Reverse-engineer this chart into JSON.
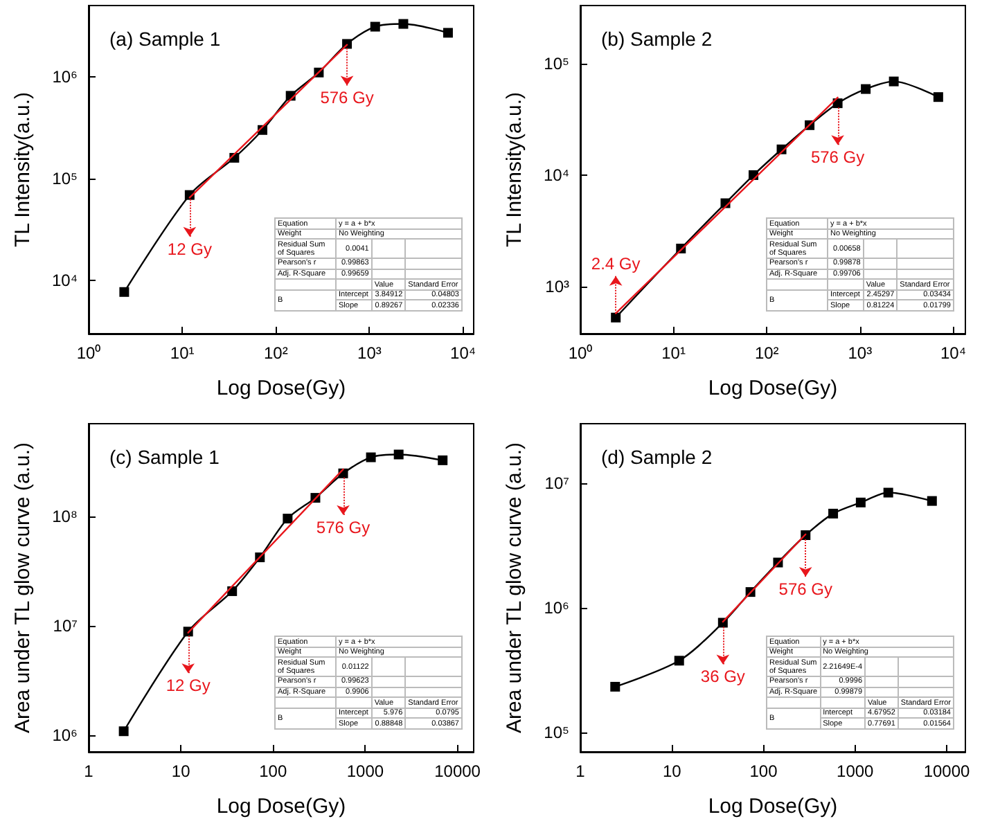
{
  "chart_data": [
    {
      "type": "line",
      "title": "(a) Sample 1",
      "xlabel": "Log Dose(Gy)",
      "ylabel": "TL Intensity(a.u.)",
      "log": "xy",
      "grid": false,
      "marker": "square",
      "xlim": [
        1,
        13000
      ],
      "xticks": [
        {
          "value": 1,
          "label": "10⁰"
        },
        {
          "value": 10,
          "label": "10¹"
        },
        {
          "value": 100,
          "label": "10²"
        },
        {
          "value": 1000,
          "label": "10³"
        },
        {
          "value": 10000,
          "label": "10⁴"
        }
      ],
      "ylim": [
        3000,
        5000000
      ],
      "yticks": [
        {
          "value": 10000,
          "label": "10⁴"
        },
        {
          "value": 100000,
          "label": "10⁵"
        },
        {
          "value": 1000000,
          "label": "10⁶"
        }
      ],
      "series": [
        {
          "color": "#000000",
          "x": [
            2.4,
            12,
            36,
            72,
            144,
            288,
            576,
            1152,
            2304,
            6912
          ],
          "values": [
            7700,
            69000,
            160000,
            300000,
            650000,
            1100000,
            2100000,
            3100000,
            3300000,
            2700000
          ]
        },
        {
          "color": "#e8161c",
          "marker": "none",
          "x": [
            12,
            576
          ],
          "values": [
            65000,
            2060000
          ]
        }
      ],
      "annotations": [
        {
          "text": "12 Gy",
          "x": 12,
          "y": 69000
        },
        {
          "text": "576 Gy",
          "x": 576,
          "y": 2100000
        },
        "Equation",
        "y = a + b*x",
        "Weight",
        "No Weighting",
        "Residual Sum of Squares",
        "0.0041",
        "Pearson's r",
        "0.99863",
        "Adj. R-Square",
        "0.99659",
        "Value",
        "Standard Error",
        "B",
        "Intercept",
        "3.84912",
        "0.04803",
        "Slope",
        "0.89267",
        "0.02336"
      ]
    },
    {
      "type": "line",
      "title": "(b) Sample 2",
      "xlabel": "Log Dose(Gy)",
      "ylabel": "TL Intensity(a.u.)",
      "log": "xy",
      "grid": false,
      "marker": "square",
      "xlim": [
        1,
        13500
      ],
      "xticks": [
        {
          "value": 1,
          "label": "10⁰"
        },
        {
          "value": 10,
          "label": "10¹"
        },
        {
          "value": 100,
          "label": "10²"
        },
        {
          "value": 1000,
          "label": "10³"
        },
        {
          "value": 10000,
          "label": "10⁴"
        }
      ],
      "ylim": [
        380,
        330000
      ],
      "yticks": [
        {
          "value": 1000,
          "label": "10³"
        },
        {
          "value": 10000,
          "label": "10⁴"
        },
        {
          "value": 100000,
          "label": "10⁵"
        }
      ],
      "series": [
        {
          "color": "#000000",
          "x": [
            2.4,
            12,
            36,
            72,
            144,
            288,
            576,
            1152,
            2304,
            6912
          ],
          "values": [
            530,
            2200,
            5600,
            10000,
            17000,
            28000,
            44000,
            59000,
            69000,
            50000
          ]
        },
        {
          "color": "#e8161c",
          "marker": "none",
          "x": [
            2.4,
            576
          ],
          "values": [
            578,
            49500
          ]
        }
      ],
      "annotations": [
        {
          "text": "2.4 Gy",
          "x": 2.4,
          "y": 530
        },
        {
          "text": "576 Gy",
          "x": 576,
          "y": 44000
        },
        "Equation",
        "y = a + b*x",
        "Weight",
        "No Weighting",
        "Residual Sum of Squares",
        "0.00658",
        "Pearson's r",
        "0.99878",
        "Adj. R-Square",
        "0.99706",
        "Value",
        "Standard Error",
        "B",
        "Intercept",
        "2.45297",
        "0.03434",
        "Slope",
        "0.81224",
        "0.01799"
      ]
    },
    {
      "type": "line",
      "title": "(c) Sample 1",
      "xlabel": "Log Dose(Gy)",
      "ylabel": "Area under TL glow curve (a.u.)",
      "log": "xy",
      "grid": false,
      "marker": "square",
      "xlim": [
        1,
        15000
      ],
      "xticks": [
        1,
        10,
        100,
        1000,
        10000
      ],
      "ylim": [
        700000,
        700000000
      ],
      "yticks": [
        {
          "value": 1000000,
          "label": "10⁶"
        },
        {
          "value": 10000000,
          "label": "10⁷"
        },
        {
          "value": 100000000,
          "label": "10⁸"
        }
      ],
      "series": [
        {
          "color": "#000000",
          "x": [
            2.4,
            12,
            36,
            72,
            144,
            288,
            576,
            1152,
            2304,
            6912
          ],
          "values": [
            1080000,
            8800000,
            20600000,
            42000000,
            95000000,
            147000000,
            246000000,
            345000000,
            366000000,
            324000000
          ]
        },
        {
          "color": "#e8161c",
          "marker": "none",
          "x": [
            12,
            576
          ],
          "values": [
            8600000,
            268000000
          ]
        }
      ],
      "annotations": [
        {
          "text": "12 Gy",
          "x": 12,
          "y": 8800000
        },
        {
          "text": "576 Gy",
          "x": 576,
          "y": 246000000
        },
        "Equation",
        "y = a + b*x",
        "Weight",
        "No Weighting",
        "Residual Sum of Squares",
        "0.01122",
        "Pearson's r",
        "0.99623",
        "Adj. R-Square",
        "0.9906",
        "Value",
        "Standard Error",
        "B",
        "Intercept",
        "5.976",
        "0.0795",
        "Slope",
        "0.88848",
        "0.03867"
      ]
    },
    {
      "type": "line",
      "title": "(d) Sample 2",
      "xlabel": "Log Dose(Gy)",
      "ylabel": "Area under TL glow curve (a.u.)",
      "log": "xy",
      "grid": false,
      "marker": "square",
      "xlim": [
        1,
        16000
      ],
      "xticks": [
        1,
        10,
        100,
        1000,
        10000
      ],
      "ylim": [
        70000,
        30000000
      ],
      "yticks": [
        {
          "value": 100000,
          "label": "10⁵"
        },
        {
          "value": 1000000,
          "label": "10⁶"
        },
        {
          "value": 10000000,
          "label": "10⁷"
        }
      ],
      "series": [
        {
          "color": "#000000",
          "x": [
            2.4,
            12,
            36,
            72,
            144,
            288,
            576,
            1152,
            2304,
            6912
          ],
          "values": [
            233000,
            377000,
            760000,
            1340000,
            2310000,
            3830000,
            5700000,
            7000000,
            8400000,
            7200000
          ]
        },
        {
          "color": "#e8161c",
          "marker": "none",
          "x": [
            36,
            288
          ],
          "values": [
            774000,
            3890000
          ]
        }
      ],
      "annotations": [
        {
          "text": "36 Gy",
          "x": 36,
          "y": 760000
        },
        {
          "text": "576 Gy",
          "x": 288,
          "y": 3830000
        },
        "Equation",
        "y = a + b*x",
        "Weight",
        "No Weighting",
        "Residual Sum of Squares",
        "2.21649E-4",
        "Pearson's r",
        "0.9996",
        "Adj. R-Square",
        "0.99879",
        "Value",
        "Standard Error",
        "B",
        "Intercept",
        "4.67952",
        "0.03184",
        "Slope",
        "0.77691",
        "0.01564"
      ]
    }
  ]
}
